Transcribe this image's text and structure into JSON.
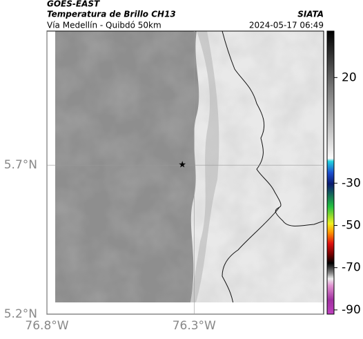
{
  "header": {
    "satellite": "GOES-EAST",
    "title": "Temperatura de Brillo CH13",
    "subtitle": "Vía Medellín - Quibdó 50km",
    "source": "SIATA",
    "datetime": "2024-05-17 06:49"
  },
  "map": {
    "xlim": [
      -76.8,
      -75.86
    ],
    "ylim": [
      5.2,
      6.15
    ],
    "xticks": [
      {
        "value": -76.8,
        "label": "76.8°W"
      },
      {
        "value": -76.3,
        "label": "76.3°W"
      }
    ],
    "yticks": [
      {
        "value": 5.2,
        "label": "5.2°N"
      },
      {
        "value": 5.7,
        "label": "5.7°N"
      }
    ],
    "grid": true,
    "marker": {
      "lon": -76.34,
      "lat": 5.7
    }
  },
  "colorbar": {
    "lim": [
      -92,
      42
    ],
    "ticks": [
      20,
      -30,
      -50,
      -70,
      -90
    ]
  }
}
